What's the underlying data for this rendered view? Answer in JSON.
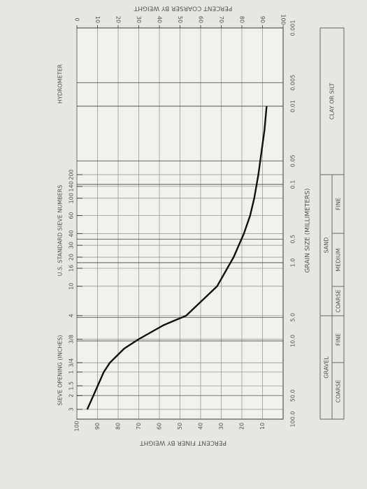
{
  "chart_data": {
    "type": "line",
    "title": "PERCENT COARSER BY WEIGHT",
    "y_label": "PERCENT FINER BY WEIGHT",
    "x_label": "GRAIN SIZE (MILLIMETERS)",
    "sieve_label": "U.S. STANDARD SIEVE NUMBERS",
    "inch_label": "SIEVE OPENING (INCHES)",
    "hydrometer_label": "HYDROMETER",
    "xscale": "log",
    "x": [
      75,
      50,
      25,
      19,
      12.5,
      9.5,
      6.3,
      4.75,
      2,
      0.85,
      0.425,
      0.25,
      0.15,
      0.075,
      0.02,
      0.01
    ],
    "values": [
      95,
      92,
      87,
      84,
      77,
      70,
      58,
      47,
      32,
      24,
      19,
      16,
      14,
      12,
      9,
      8
    ],
    "color": "#111111",
    "xlim": [
      100,
      0.001
    ],
    "xticks": [
      {
        "value": 100,
        "label": "100.0"
      },
      {
        "value": 50,
        "label": "50.0"
      },
      {
        "value": 10,
        "label": "10.0"
      },
      {
        "value": 5,
        "label": "5.0"
      },
      {
        "value": 1,
        "label": "1.0"
      },
      {
        "value": 0.5,
        "label": "0.5"
      },
      0.1,
      0.05,
      0.01,
      0.005,
      0.001
    ],
    "ylim": [
      0,
      100
    ],
    "yticks": [
      10,
      20,
      30,
      40,
      50,
      60,
      70,
      80,
      90,
      100
    ],
    "y2lim": [
      100,
      0
    ],
    "y2ticks": [
      0,
      10,
      20,
      30,
      40,
      50,
      60,
      70,
      80,
      90,
      100
    ],
    "sieve_ticks": [
      {
        "value": 0.075,
        "label": "200"
      },
      {
        "value": 0.106,
        "label": "140"
      },
      {
        "value": 0.15,
        "label": "100"
      },
      {
        "value": 0.25,
        "label": "60"
      },
      {
        "value": 0.425,
        "label": "40"
      },
      {
        "value": 0.6,
        "label": "30"
      },
      {
        "value": 0.85,
        "label": "20"
      },
      {
        "value": 1.18,
        "label": "16"
      },
      {
        "value": 2,
        "label": "10"
      },
      {
        "value": 4.75,
        "label": "4"
      },
      {
        "value": 9.5,
        "label": "3/8"
      },
      {
        "value": 19,
        "label": "3/4"
      },
      {
        "value": 25,
        "label": "1"
      },
      {
        "value": 37.5,
        "label": "1.5"
      },
      {
        "value": 50,
        "label": "2"
      },
      {
        "value": 75,
        "label": "3"
      }
    ],
    "grid": true,
    "classification": {
      "gravel": "GRAVEL",
      "gravel_coarse": "COARSE",
      "gravel_fine": "FINE",
      "sand": "SAND",
      "sand_coarse": "COARSE",
      "sand_medium": "MEDIUM",
      "sand_fine": "FINE",
      "clay_silt": "CLAY OR SILT"
    }
  }
}
